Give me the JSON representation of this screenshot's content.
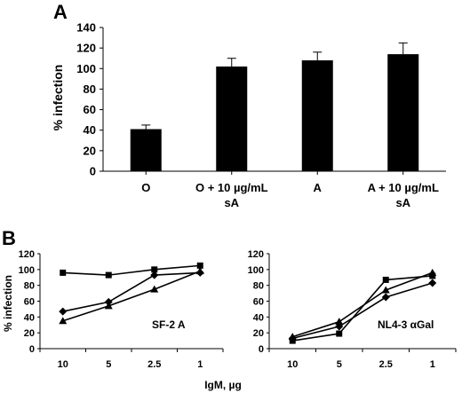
{
  "chart_data": [
    {
      "panel": "A",
      "type": "bar",
      "ylabel": "% infection",
      "ylim": [
        0,
        140
      ],
      "yticks": [
        "0",
        "20",
        "40",
        "60",
        "80",
        "100",
        "120",
        "140"
      ],
      "categories": [
        [
          "O"
        ],
        [
          "O + 10 µg/mL",
          "sA"
        ],
        [
          "A"
        ],
        [
          "A + 10 µg/mL",
          "sA"
        ]
      ],
      "values": [
        41,
        102,
        108,
        114
      ],
      "errors": [
        4,
        8,
        8,
        11
      ],
      "bar_color": "#000000"
    },
    {
      "panel": "B",
      "type": "line",
      "ylabel": "% infection",
      "xlabel": "IgM, µg",
      "annotation": "SF-2 A",
      "ylim": [
        0,
        120
      ],
      "yticks": [
        "0",
        "20",
        "40",
        "60",
        "80",
        "100",
        "120"
      ],
      "categories": [
        "10",
        "5",
        "2.5",
        "1"
      ],
      "series": [
        {
          "marker": "square",
          "values": [
            96,
            93,
            100,
            105
          ]
        },
        {
          "marker": "diamond",
          "values": [
            47,
            59,
            93,
            96
          ]
        },
        {
          "marker": "triangle",
          "values": [
            35,
            54,
            75,
            98
          ]
        }
      ]
    },
    {
      "panel": "B",
      "type": "line",
      "ylabel": "",
      "xlabel": "",
      "annotation": "NL4-3 αGal",
      "ylim": [
        0,
        120
      ],
      "yticks": [
        "0",
        "20",
        "40",
        "60",
        "80",
        "100",
        "120"
      ],
      "categories": [
        "10",
        "5",
        "2.5",
        "1"
      ],
      "series": [
        {
          "marker": "square",
          "values": [
            10,
            19,
            87,
            92
          ]
        },
        {
          "marker": "diamond",
          "values": [
            13,
            28,
            65,
            83
          ]
        },
        {
          "marker": "triangle",
          "values": [
            15,
            34,
            74,
            96
          ]
        }
      ]
    }
  ]
}
